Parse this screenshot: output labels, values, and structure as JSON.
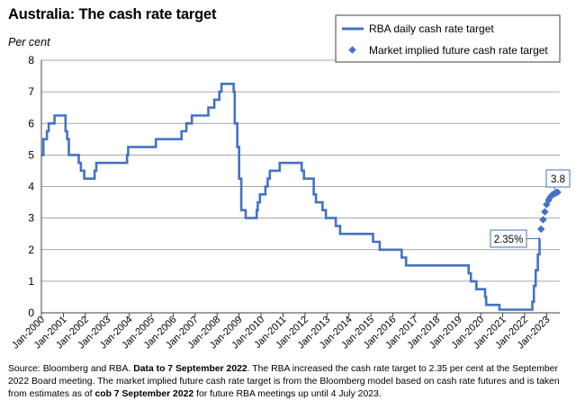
{
  "header": {
    "title": "Australia: The cash rate target",
    "unit": "Per cent"
  },
  "source": {
    "p1": "Source: Bloomberg and RBA.",
    "p2": "Data to 7 September 2022",
    "p3": ". The RBA increased the cash rate target to 2.35 per cent at the September 2022 Board meeting. The market implied future cash rate target is from the Bloomberg model based on cash rate futures and is taken from estimates as of",
    "p4": "cob 7 September 2022",
    "p5": "for future RBA meetings up until 4 July 2023."
  },
  "colors": {
    "series": "#4472C4",
    "grid": "#8c8c8c",
    "axis": "#404040"
  },
  "chart_data": {
    "type": "line",
    "xlim": [
      2000.0,
      2023.6
    ],
    "ylim": [
      0,
      8
    ],
    "yticks": [
      0,
      1,
      2,
      3,
      4,
      5,
      6,
      7,
      8
    ],
    "xticks": [
      {
        "x": 2000,
        "label": "Jan-2000"
      },
      {
        "x": 2001,
        "label": "Jan-2001"
      },
      {
        "x": 2002,
        "label": "Jan-2002"
      },
      {
        "x": 2003,
        "label": "Jan-2003"
      },
      {
        "x": 2004,
        "label": "Jan-2004"
      },
      {
        "x": 2005,
        "label": "Jan-2005"
      },
      {
        "x": 2006,
        "label": "Jan-2006"
      },
      {
        "x": 2007,
        "label": "Jan-2007"
      },
      {
        "x": 2008,
        "label": "Jan-2008"
      },
      {
        "x": 2009,
        "label": "Jan-2009"
      },
      {
        "x": 2010,
        "label": "Jan-2010"
      },
      {
        "x": 2011,
        "label": "Jan-2011"
      },
      {
        "x": 2012,
        "label": "Jan-2012"
      },
      {
        "x": 2013,
        "label": "Jan-2013"
      },
      {
        "x": 2014,
        "label": "Jan-2014"
      },
      {
        "x": 2015,
        "label": "Jan-2015"
      },
      {
        "x": 2016,
        "label": "Jan-2016"
      },
      {
        "x": 2017,
        "label": "Jan-2017"
      },
      {
        "x": 2018,
        "label": "Jan-2018"
      },
      {
        "x": 2019,
        "label": "Jan-2019"
      },
      {
        "x": 2020,
        "label": "Jan-2020"
      },
      {
        "x": 2021,
        "label": "Jan-2021"
      },
      {
        "x": 2022,
        "label": "Jan-2022"
      },
      {
        "x": 2023,
        "label": "Jan-2023"
      }
    ],
    "grid": true,
    "legend_position": "top-right",
    "series": [
      {
        "name": "RBA daily cash rate target",
        "style": "step-line",
        "points": [
          [
            2000.0,
            5.0
          ],
          [
            2000.09,
            5.5
          ],
          [
            2000.25,
            5.75
          ],
          [
            2000.33,
            6.0
          ],
          [
            2000.6,
            6.25
          ],
          [
            2001.1,
            5.75
          ],
          [
            2001.17,
            5.5
          ],
          [
            2001.25,
            5.0
          ],
          [
            2001.7,
            4.75
          ],
          [
            2001.8,
            4.5
          ],
          [
            2001.95,
            4.25
          ],
          [
            2002.42,
            4.5
          ],
          [
            2002.5,
            4.75
          ],
          [
            2003.9,
            5.0
          ],
          [
            2003.95,
            5.25
          ],
          [
            2005.21,
            5.5
          ],
          [
            2006.38,
            5.75
          ],
          [
            2006.6,
            6.0
          ],
          [
            2006.85,
            6.25
          ],
          [
            2007.6,
            6.5
          ],
          [
            2007.87,
            6.75
          ],
          [
            2008.1,
            7.0
          ],
          [
            2008.2,
            7.25
          ],
          [
            2008.75,
            7.0
          ],
          [
            2008.8,
            6.0
          ],
          [
            2008.92,
            5.25
          ],
          [
            2009.0,
            4.25
          ],
          [
            2009.1,
            3.25
          ],
          [
            2009.3,
            3.0
          ],
          [
            2009.8,
            3.25
          ],
          [
            2009.85,
            3.5
          ],
          [
            2009.95,
            3.75
          ],
          [
            2010.2,
            4.0
          ],
          [
            2010.3,
            4.25
          ],
          [
            2010.4,
            4.5
          ],
          [
            2010.85,
            4.75
          ],
          [
            2011.85,
            4.5
          ],
          [
            2011.95,
            4.25
          ],
          [
            2012.4,
            3.75
          ],
          [
            2012.5,
            3.5
          ],
          [
            2012.8,
            3.25
          ],
          [
            2012.95,
            3.0
          ],
          [
            2013.4,
            2.75
          ],
          [
            2013.6,
            2.5
          ],
          [
            2015.1,
            2.25
          ],
          [
            2015.4,
            2.0
          ],
          [
            2016.4,
            1.75
          ],
          [
            2016.6,
            1.5
          ],
          [
            2019.45,
            1.25
          ],
          [
            2019.55,
            1.0
          ],
          [
            2019.8,
            0.75
          ],
          [
            2020.2,
            0.5
          ],
          [
            2020.25,
            0.25
          ],
          [
            2020.85,
            0.1
          ],
          [
            2022.35,
            0.35
          ],
          [
            2022.42,
            0.85
          ],
          [
            2022.5,
            1.35
          ],
          [
            2022.6,
            1.85
          ],
          [
            2022.68,
            2.35
          ],
          [
            2022.69,
            2.35
          ]
        ]
      },
      {
        "name": "Market implied future cash rate target",
        "style": "markers",
        "points": [
          [
            2022.75,
            2.65
          ],
          [
            2022.84,
            2.95
          ],
          [
            2022.92,
            3.2
          ],
          [
            2023.0,
            3.43
          ],
          [
            2023.09,
            3.57
          ],
          [
            2023.17,
            3.67
          ],
          [
            2023.25,
            3.73
          ],
          [
            2023.34,
            3.77
          ],
          [
            2023.42,
            3.8
          ],
          [
            2023.5,
            3.82
          ]
        ]
      }
    ],
    "annotations": [
      {
        "text": "2.35%",
        "x": 2022.68,
        "y": 2.35
      },
      {
        "text": "3.8",
        "x": 2023.5,
        "y": 3.82
      }
    ]
  }
}
